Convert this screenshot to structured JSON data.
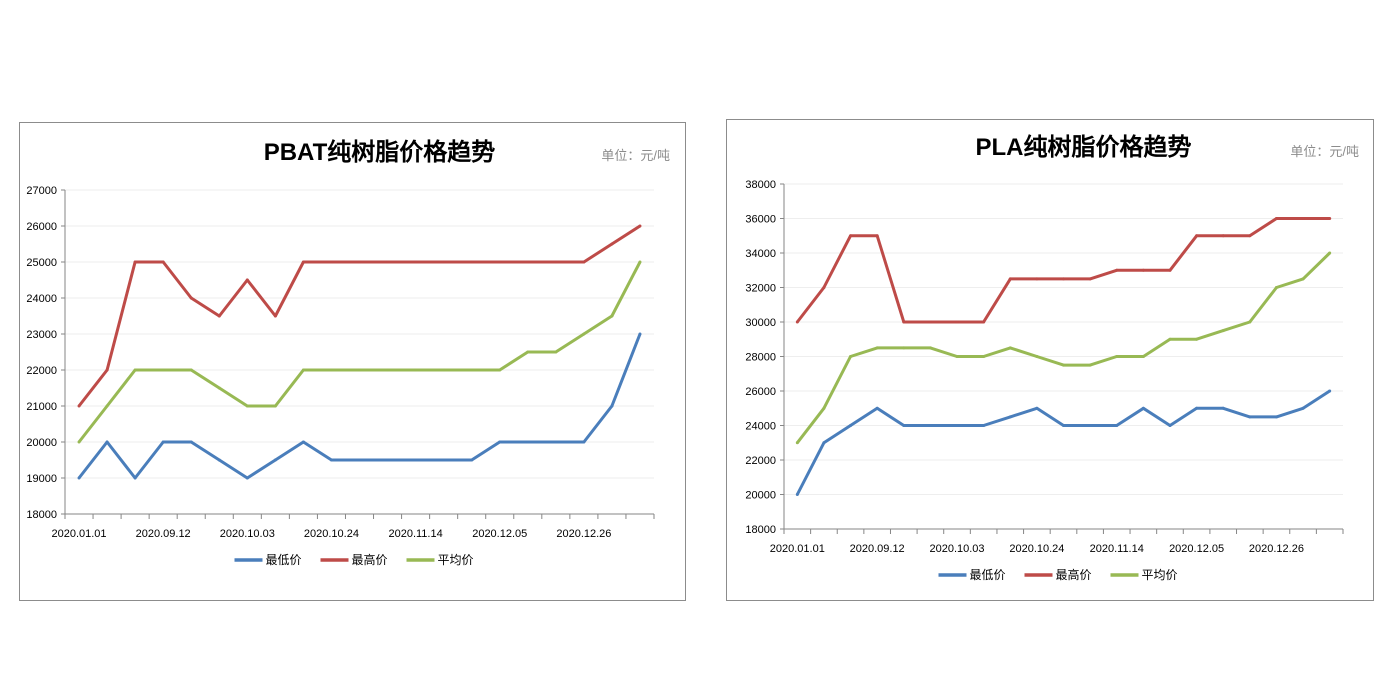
{
  "chart_data": [
    {
      "type": "line",
      "title": "PBAT纯树脂价格趋势",
      "unit_label": "单位：元/吨",
      "categories": [
        "2020.01.01",
        "",
        "",
        "2020.09.12",
        "",
        "",
        "2020.10.03",
        "",
        "",
        "2020.10.24",
        "",
        "",
        "2020.11.14",
        "",
        "",
        "2020.12.05",
        "",
        "",
        "2020.12.26",
        "",
        ""
      ],
      "ylim": [
        18000,
        27000
      ],
      "yticks": [
        18000,
        19000,
        20000,
        21000,
        22000,
        23000,
        24000,
        25000,
        26000,
        27000
      ],
      "grid": true,
      "legend": "bottom",
      "series": [
        {
          "name": "最低价",
          "color": "#4a7ebb",
          "values": [
            19000,
            20000,
            19000,
            20000,
            20000,
            19500,
            19000,
            19500,
            20000,
            19500,
            19500,
            19500,
            19500,
            19500,
            19500,
            20000,
            20000,
            20000,
            20000,
            21000,
            23000
          ]
        },
        {
          "name": "最高价",
          "color": "#be4b48",
          "values": [
            21000,
            22000,
            25000,
            25000,
            24000,
            23500,
            24500,
            23500,
            25000,
            25000,
            25000,
            25000,
            25000,
            25000,
            25000,
            25000,
            25000,
            25000,
            25000,
            25500,
            26000
          ]
        },
        {
          "name": "平均价",
          "color": "#98b954",
          "values": [
            20000,
            21000,
            22000,
            22000,
            22000,
            21500,
            21000,
            21000,
            22000,
            22000,
            22000,
            22000,
            22000,
            22000,
            22000,
            22000,
            22500,
            22500,
            23000,
            23500,
            25000
          ]
        }
      ]
    },
    {
      "type": "line",
      "title": "PLA纯树脂价格趋势",
      "unit_label": "单位：元/吨",
      "categories": [
        "2020.01.01",
        "",
        "",
        "2020.09.12",
        "",
        "",
        "2020.10.03",
        "",
        "",
        "2020.10.24",
        "",
        "",
        "2020.11.14",
        "",
        "",
        "2020.12.05",
        "",
        "",
        "2020.12.26",
        "",
        ""
      ],
      "ylim": [
        18000,
        38000
      ],
      "yticks": [
        18000,
        20000,
        22000,
        24000,
        26000,
        28000,
        30000,
        32000,
        34000,
        36000,
        38000
      ],
      "grid": true,
      "legend": "bottom",
      "series": [
        {
          "name": "最低价",
          "color": "#4a7ebb",
          "values": [
            20000,
            23000,
            24000,
            25000,
            24000,
            24000,
            24000,
            24000,
            24500,
            25000,
            24000,
            24000,
            24000,
            25000,
            24000,
            25000,
            25000,
            24500,
            24500,
            25000,
            26000
          ]
        },
        {
          "name": "最高价",
          "color": "#be4b48",
          "values": [
            30000,
            32000,
            35000,
            35000,
            30000,
            30000,
            30000,
            30000,
            32500,
            32500,
            32500,
            32500,
            33000,
            33000,
            33000,
            35000,
            35000,
            35000,
            36000,
            36000,
            36000
          ]
        },
        {
          "name": "平均价",
          "color": "#98b954",
          "values": [
            23000,
            25000,
            28000,
            28500,
            28500,
            28500,
            28000,
            28000,
            28500,
            28000,
            27500,
            27500,
            28000,
            28000,
            29000,
            29000,
            29500,
            30000,
            32000,
            32500,
            34000
          ]
        }
      ]
    }
  ]
}
